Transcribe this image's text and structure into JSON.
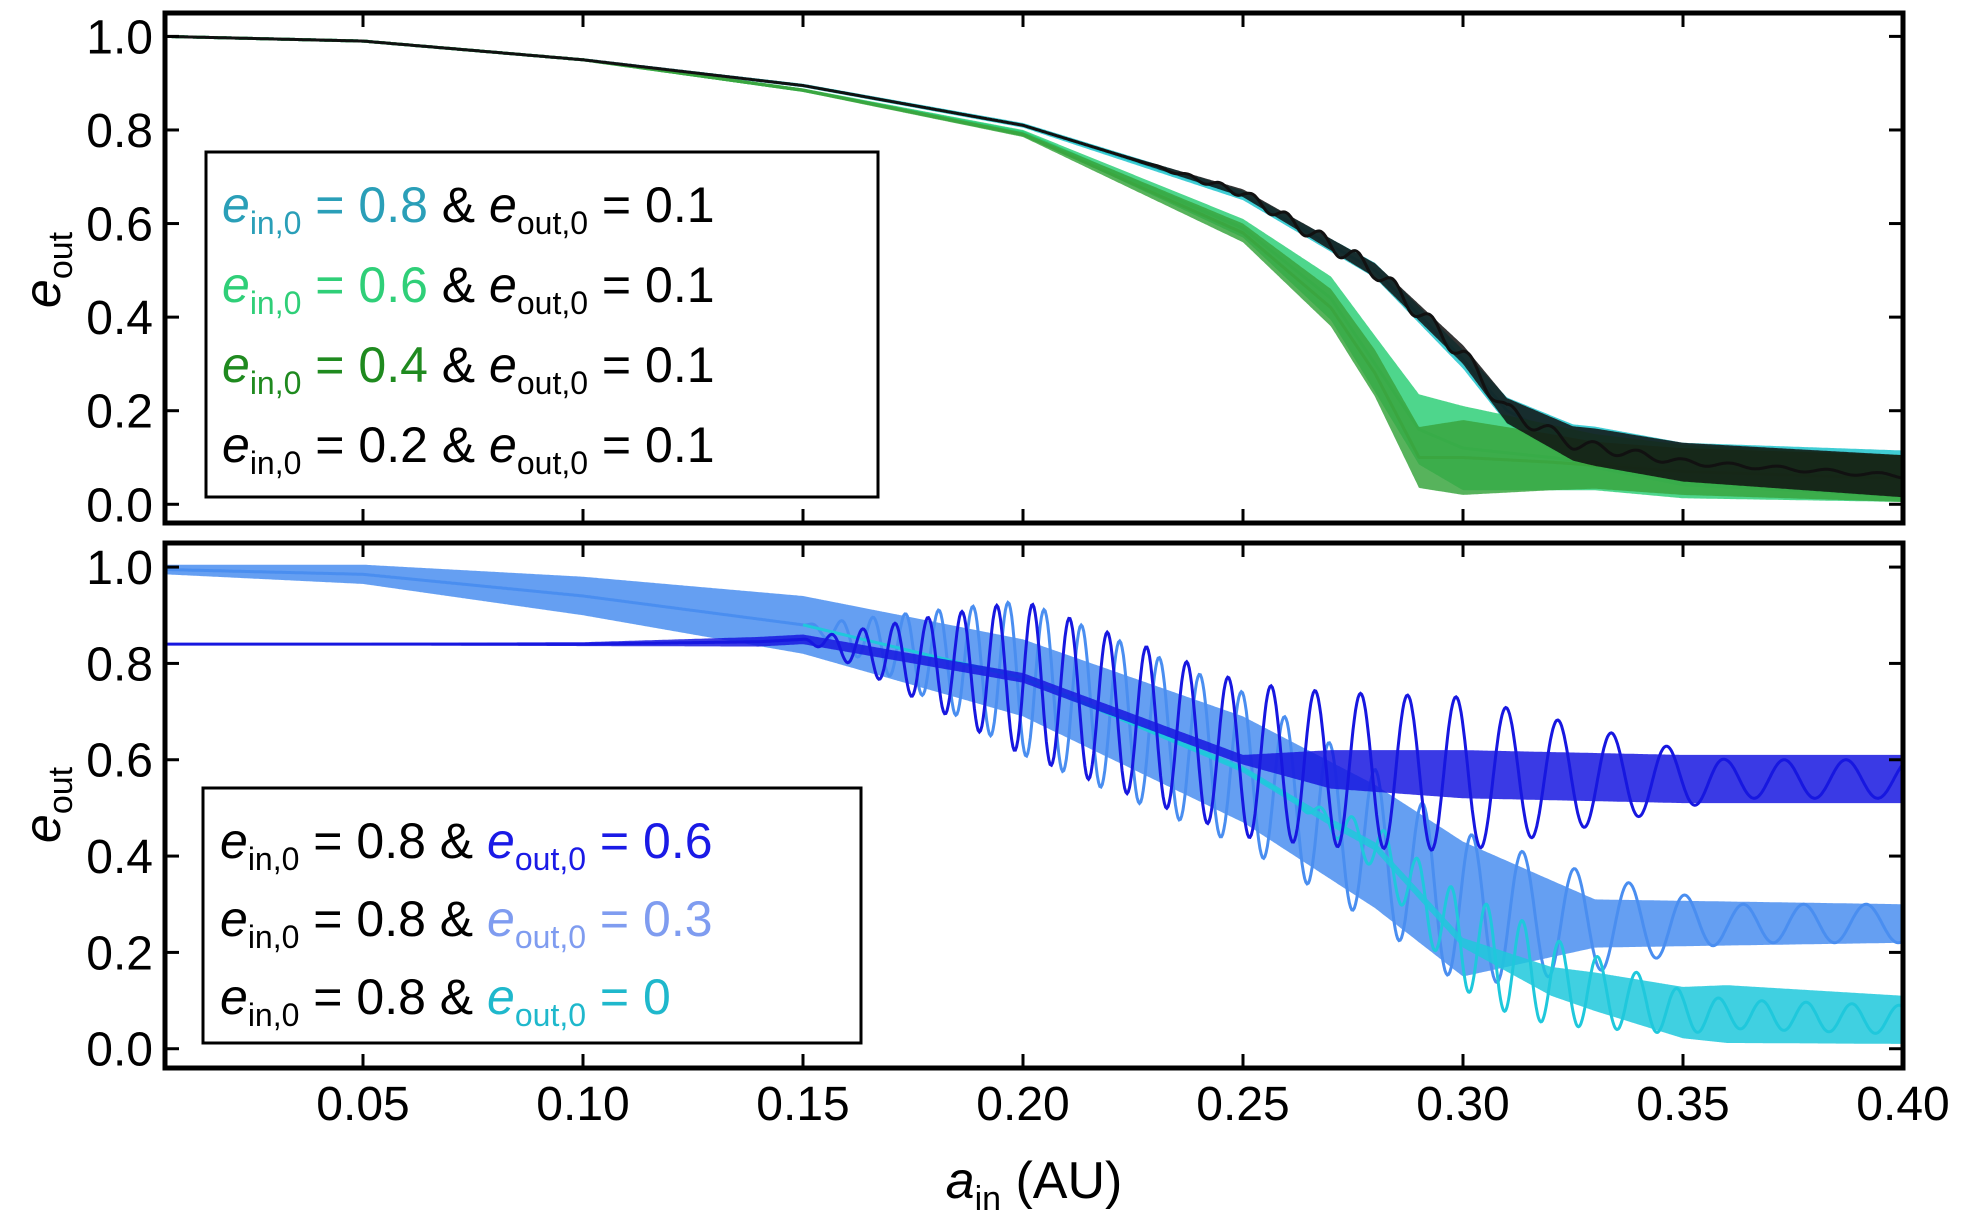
{
  "chart_data": [
    {
      "type": "line",
      "panel": "top",
      "ylabel": "e",
      "ylabel_sub": "out",
      "xlim": [
        0.005,
        0.4
      ],
      "ylim": [
        -0.04,
        1.05
      ],
      "yticks": [
        "0.0",
        "0.2",
        "0.4",
        "0.6",
        "0.8",
        "1.0"
      ],
      "legend_position": "left",
      "legend": [
        {
          "e_in0": "0.8",
          "e_out0": "0.1",
          "color": "#2a9fb8"
        },
        {
          "e_in0": "0.6",
          "e_out0": "0.1",
          "color": "#2fcf78"
        },
        {
          "e_in0": "0.4",
          "e_out0": "0.1",
          "color": "#1f8a1f"
        },
        {
          "e_in0": "0.2",
          "e_out0": "0.1",
          "color": "#000000"
        }
      ],
      "series": [
        {
          "name": "e_in,0 = 0.8 & e_out,0 = 0.1",
          "color": "#1ec4cc",
          "points": [
            [
              0.005,
              1.0
            ],
            [
              0.05,
              0.99
            ],
            [
              0.1,
              0.95
            ],
            [
              0.15,
              0.895
            ],
            [
              0.2,
              0.81
            ],
            [
              0.25,
              0.66
            ],
            [
              0.28,
              0.5
            ],
            [
              0.3,
              0.31
            ],
            [
              0.31,
              0.2
            ],
            [
              0.325,
              0.13
            ],
            [
              0.35,
              0.085
            ],
            [
              0.4,
              0.065
            ]
          ],
          "band": [
            [
              0.005,
              0.0
            ],
            [
              0.2,
              0.005
            ],
            [
              0.25,
              0.01
            ],
            [
              0.3,
              0.02
            ],
            [
              0.33,
              0.045
            ],
            [
              0.4,
              0.05
            ]
          ]
        },
        {
          "name": "e_in,0 = 0.6 & e_out,0 = 0.1",
          "color": "#2fcf78",
          "points": [
            [
              0.005,
              1.0
            ],
            [
              0.05,
              0.99
            ],
            [
              0.1,
              0.95
            ],
            [
              0.15,
              0.885
            ],
            [
              0.2,
              0.795
            ],
            [
              0.25,
              0.59
            ],
            [
              0.27,
              0.44
            ],
            [
              0.28,
              0.3
            ],
            [
              0.29,
              0.16
            ],
            [
              0.3,
              0.12
            ],
            [
              0.32,
              0.1
            ],
            [
              0.35,
              0.07
            ],
            [
              0.4,
              0.055
            ]
          ],
          "band": [
            [
              0.005,
              0.0
            ],
            [
              0.2,
              0.005
            ],
            [
              0.25,
              0.02
            ],
            [
              0.28,
              0.06
            ],
            [
              0.3,
              0.09
            ],
            [
              0.33,
              0.06
            ],
            [
              0.4,
              0.05
            ]
          ]
        },
        {
          "name": "e_in,0 = 0.4 & e_out,0 = 0.1",
          "color": "#3aa640",
          "points": [
            [
              0.005,
              1.0
            ],
            [
              0.05,
              0.99
            ],
            [
              0.1,
              0.95
            ],
            [
              0.15,
              0.885
            ],
            [
              0.2,
              0.79
            ],
            [
              0.25,
              0.58
            ],
            [
              0.27,
              0.42
            ],
            [
              0.28,
              0.28
            ],
            [
              0.29,
              0.1
            ],
            [
              0.3,
              0.1
            ],
            [
              0.32,
              0.09
            ],
            [
              0.35,
              0.07
            ],
            [
              0.4,
              0.055
            ]
          ],
          "band": [
            [
              0.005,
              0.0
            ],
            [
              0.2,
              0.005
            ],
            [
              0.25,
              0.02
            ],
            [
              0.28,
              0.05
            ],
            [
              0.3,
              0.08
            ],
            [
              0.33,
              0.05
            ],
            [
              0.4,
              0.05
            ]
          ]
        },
        {
          "name": "e_in,0 = 0.2 & e_out,0 = 0.1",
          "color": "#111111",
          "points": [
            [
              0.005,
              1.0
            ],
            [
              0.05,
              0.99
            ],
            [
              0.1,
              0.95
            ],
            [
              0.15,
              0.895
            ],
            [
              0.2,
              0.81
            ],
            [
              0.25,
              0.665
            ],
            [
              0.28,
              0.5
            ],
            [
              0.3,
              0.32
            ],
            [
              0.31,
              0.2
            ],
            [
              0.325,
              0.13
            ],
            [
              0.35,
              0.09
            ],
            [
              0.4,
              0.06
            ]
          ],
          "band": [
            [
              0.005,
              0.0
            ],
            [
              0.22,
              0.003
            ],
            [
              0.26,
              0.01
            ],
            [
              0.3,
              0.02
            ],
            [
              0.33,
              0.04
            ],
            [
              0.4,
              0.045
            ]
          ],
          "osc_start": 0.225,
          "osc_amp": 0.018
        }
      ]
    },
    {
      "type": "line",
      "panel": "bottom",
      "xlabel": "a",
      "xlabel_sub": "in",
      "xlabel_unit": "(AU)",
      "ylabel": "e",
      "ylabel_sub": "out",
      "xlim": [
        0.005,
        0.4
      ],
      "ylim": [
        -0.04,
        1.05
      ],
      "xticks": [
        "0.05",
        "0.10",
        "0.15",
        "0.20",
        "0.25",
        "0.30",
        "0.35",
        "0.40"
      ],
      "yticks": [
        "0.0",
        "0.2",
        "0.4",
        "0.6",
        "0.8",
        "1.0"
      ],
      "legend_position": "bottom-left",
      "legend": [
        {
          "e_in0": "0.8",
          "e_out0": "0.6",
          "color": "#1a1ae6"
        },
        {
          "e_in0": "0.8",
          "e_out0": "0.3",
          "color": "#7f9cf0"
        },
        {
          "e_in0": "0.8",
          "e_out0": "0",
          "color": "#1fb8cc"
        }
      ],
      "series": [
        {
          "name": "e_in,0 = 0.8 & e_out,0 = 0.3",
          "color": "#4a8ef0",
          "points": [
            [
              0.005,
              0.995
            ],
            [
              0.05,
              0.985
            ],
            [
              0.1,
              0.94
            ],
            [
              0.15,
              0.88
            ],
            [
              0.2,
              0.77
            ],
            [
              0.25,
              0.58
            ],
            [
              0.28,
              0.42
            ],
            [
              0.3,
              0.29
            ],
            [
              0.33,
              0.26
            ],
            [
              0.4,
              0.26
            ]
          ],
          "band": [
            [
              0.005,
              0.01
            ],
            [
              0.05,
              0.02
            ],
            [
              0.1,
              0.04
            ],
            [
              0.15,
              0.06
            ],
            [
              0.2,
              0.08
            ],
            [
              0.25,
              0.11
            ],
            [
              0.3,
              0.14
            ],
            [
              0.33,
              0.05
            ],
            [
              0.4,
              0.04
            ]
          ],
          "osc_start": 0.15,
          "osc_amp": 0.16
        },
        {
          "name": "e_in,0 = 0.8 & e_out,0 = 0",
          "color": "#1fc8dc",
          "points": [
            [
              0.15,
              0.88
            ],
            [
              0.2,
              0.77
            ],
            [
              0.25,
              0.58
            ],
            [
              0.27,
              0.47
            ],
            [
              0.28,
              0.42
            ],
            [
              0.3,
              0.22
            ],
            [
              0.32,
              0.14
            ],
            [
              0.35,
              0.075
            ],
            [
              0.4,
              0.06
            ]
          ],
          "band": [
            [
              0.15,
              0.0
            ],
            [
              0.3,
              0.01
            ],
            [
              0.33,
              0.04
            ],
            [
              0.36,
              0.06
            ],
            [
              0.4,
              0.05
            ]
          ],
          "osc_start": 0.26,
          "osc_amp": 0.12
        },
        {
          "name": "e_in,0 = 0.8 & e_out,0 = 0.6",
          "color": "#1717e0",
          "points": [
            [
              0.005,
              0.84
            ],
            [
              0.1,
              0.84
            ],
            [
              0.14,
              0.845
            ],
            [
              0.15,
              0.85
            ],
            [
              0.2,
              0.77
            ],
            [
              0.25,
              0.6
            ],
            [
              0.27,
              0.58
            ],
            [
              0.3,
              0.57
            ],
            [
              0.35,
              0.56
            ],
            [
              0.4,
              0.56
            ]
          ],
          "band": [
            [
              0.005,
              0.001
            ],
            [
              0.1,
              0.004
            ],
            [
              0.14,
              0.01
            ],
            [
              0.15,
              0.01
            ],
            [
              0.25,
              0.01
            ],
            [
              0.27,
              0.04
            ],
            [
              0.3,
              0.05
            ],
            [
              0.4,
              0.05
            ]
          ],
          "osc_start": 0.15,
          "osc_amp": 0.16
        }
      ]
    }
  ]
}
